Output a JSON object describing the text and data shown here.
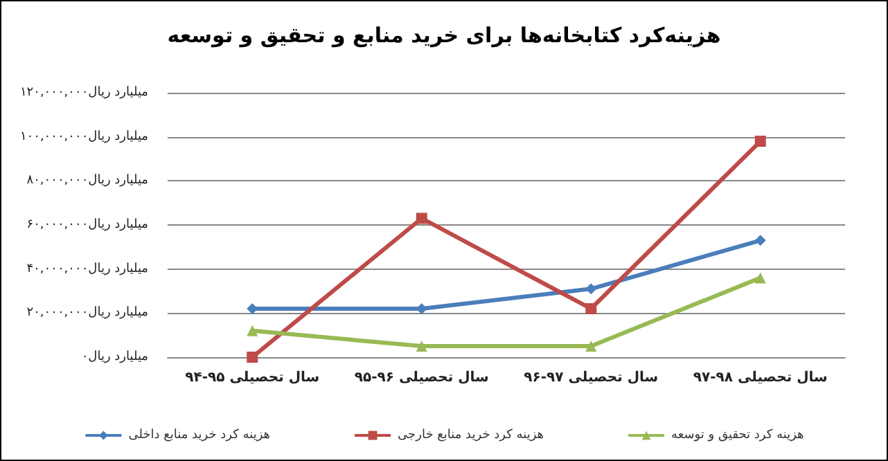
{
  "chart_data": {
    "type": "line",
    "title": "هزینه‌کرد کتابخانه‌ها برای خرید منابع و تحقیق و توسعه",
    "categories": [
      "سال تحصیلی ۹۵-۹۴",
      "سال تحصیلی ۹۶-۹۵",
      "سال تحصیلی ۹۷-۹۶",
      "سال تحصیلی ۹۸-۹۷"
    ],
    "series": [
      {
        "name": "هزینه کرد خرید منابع داخلی",
        "color": "#4a7ebb",
        "marker": "diamond",
        "values": [
          22000000,
          22000000,
          31000000,
          53000000
        ]
      },
      {
        "name": "هزینه کرد خرید منابع خارجی",
        "color": "#be4b48",
        "marker": "square",
        "values": [
          0,
          63000000,
          22000000,
          98000000
        ]
      },
      {
        "name": "هزینه کرد تحقیق و توسعه",
        "color": "#98b954",
        "marker": "triangle",
        "values": [
          12000000,
          5000000,
          5000000,
          36000000
        ]
      }
    ],
    "ylim": [
      0,
      120000000
    ],
    "yticks": [
      {
        "value": 0,
        "label": "۰میلیارد ریال"
      },
      {
        "value": 20000000,
        "label": "۲۰,۰۰۰,۰۰۰میلیارد ریال"
      },
      {
        "value": 40000000,
        "label": "۴۰,۰۰۰,۰۰۰میلیارد ریال"
      },
      {
        "value": 60000000,
        "label": "۶۰,۰۰۰,۰۰۰میلیارد ریال"
      },
      {
        "value": 80000000,
        "label": "۸۰,۰۰۰,۰۰۰میلیارد ریال"
      },
      {
        "value": 100000000,
        "label": "۱۰۰,۰۰۰,۰۰۰میلیارد ریال"
      },
      {
        "value": 120000000,
        "label": "۱۲۰,۰۰۰,۰۰۰میلیارد ریال"
      }
    ],
    "grid": "y",
    "legend": "bottom",
    "line_style": "solid"
  }
}
